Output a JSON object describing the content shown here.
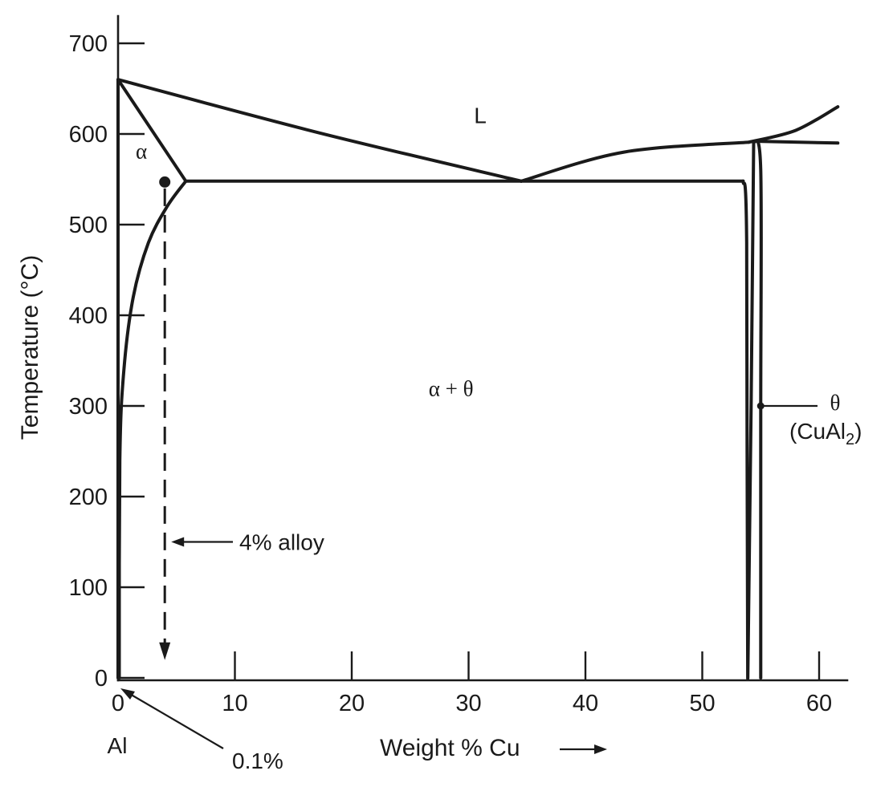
{
  "chart_data": {
    "type": "line",
    "title": "",
    "xlabel": "Weight  % Cu",
    "xlabel_arrow": "⟶",
    "ylabel": "Temperature (°C)",
    "xlim": [
      0,
      62
    ],
    "ylim": [
      0,
      720
    ],
    "x_ticks": [
      0,
      10,
      20,
      30,
      40,
      50,
      60
    ],
    "y_ticks": [
      0,
      100,
      200,
      300,
      400,
      500,
      600,
      700
    ],
    "grid": false,
    "legend": "none",
    "series": [
      {
        "name": "",
        "kind": "liquidus-left",
        "x": [
          0,
          17.3,
          34.5
        ],
        "y": [
          660,
          601,
          548
        ]
      },
      {
        "name": "",
        "kind": "liquidus-right",
        "x": [
          34.5,
          43.3,
          54
        ],
        "y": [
          548,
          580,
          591
        ]
      },
      {
        "name": "",
        "kind": "liquid-boundary-upper",
        "x": [
          54,
          58,
          61.6
        ],
        "y": [
          591,
          604,
          630
        ]
      },
      {
        "name": "",
        "kind": "theta-top",
        "x": [
          54.4,
          61.6
        ],
        "y": [
          592,
          590
        ]
      },
      {
        "name": "",
        "kind": "solidus",
        "x": [
          0,
          5.8
        ],
        "y": [
          660,
          548
        ]
      },
      {
        "name": "",
        "kind": "eutectic-isotherm",
        "x": [
          5.8,
          53.5
        ],
        "y": [
          548,
          548
        ]
      },
      {
        "name": "",
        "kind": "solvus",
        "x": [
          0.1,
          0.15,
          0.5,
          1.3,
          2.6,
          4.2,
          5.8
        ],
        "y": [
          0,
          240,
          340,
          420,
          480,
          520,
          548
        ]
      },
      {
        "name": "",
        "kind": "alpha-axis-edge",
        "x": [
          0,
          0
        ],
        "y": [
          0,
          660
        ]
      },
      {
        "name": "",
        "kind": "theta-left-boundary",
        "x": [
          53.5,
          53.8,
          53.9,
          54.4
        ],
        "y": [
          548,
          480,
          0,
          592
        ]
      },
      {
        "name": "",
        "kind": "theta-right-boundary",
        "x": [
          54.4,
          55,
          55,
          55
        ],
        "y": [
          592,
          560,
          300,
          0
        ]
      }
    ],
    "regions": [
      {
        "label": "L",
        "x": 31,
        "y": 612
      },
      {
        "label": "α",
        "x": 2,
        "y": 573
      },
      {
        "label": "α + θ",
        "x": 28.5,
        "y": 311
      }
    ],
    "annotations": {
      "alloy_line": {
        "x": 4,
        "y_start": 547,
        "y_end": 25
      },
      "alloy_label": "4% alloy",
      "theta_label": "θ",
      "theta_formula": "(CuAl",
      "theta_formula_sub": "2",
      "theta_formula_close": ")",
      "theta_marker": {
        "x": 55,
        "y": 300
      },
      "origin_label": "Al",
      "solubility_label": "0.1%"
    }
  }
}
